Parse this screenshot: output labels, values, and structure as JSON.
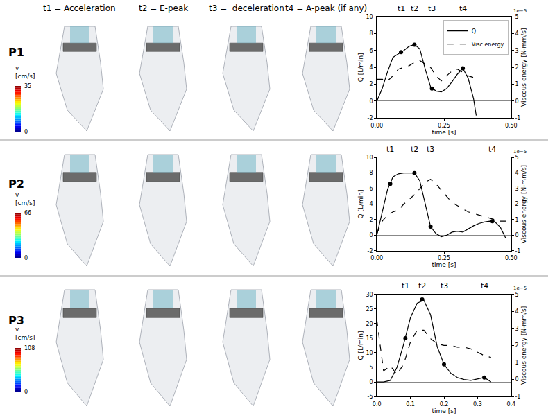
{
  "figure": {
    "column_headers": [
      "t1 = Acceleration",
      "t2 = E-peak",
      "t3 =  deceleration",
      "t4 = A-peak (if any)"
    ],
    "rows": [
      {
        "label": "P1",
        "colorbar": {
          "title_lines": [
            "v",
            "[cm/s]"
          ],
          "range": [
            0,
            35
          ],
          "ticks": [
            0,
            35
          ]
        }
      },
      {
        "label": "P2",
        "colorbar": {
          "title_lines": [
            "v",
            "[cm/s]"
          ],
          "range": [
            0,
            66
          ],
          "ticks": [
            0,
            66
          ]
        }
      },
      {
        "label": "P3",
        "colorbar": {
          "title_lines": [
            "v",
            "[cm/s]"
          ],
          "range": [
            0,
            108
          ],
          "ticks": [
            0,
            108
          ]
        }
      }
    ]
  },
  "chart_data": [
    {
      "type": "line",
      "x_label": "time [s]",
      "y_label": "Q [L/min]",
      "y2_label": "Viscous energy [N-mm/s]",
      "y2_offset_text": "1e−5",
      "grid": false,
      "legend": "upper right",
      "x": [
        0,
        0.02,
        0.04,
        0.06,
        0.08,
        0.1,
        0.12,
        0.14,
        0.16,
        0.18,
        0.2,
        0.22,
        0.24,
        0.26,
        0.28,
        0.3,
        0.32,
        0.34,
        0.36,
        0.37
      ],
      "series": [
        {
          "name": "Q",
          "color": "#000000",
          "line_style": "solid",
          "values": [
            0,
            1.5,
            3.5,
            5.2,
            5.6,
            6.0,
            6.5,
            6.7,
            6.2,
            3.8,
            1.7,
            1.2,
            1.1,
            1.5,
            2.3,
            3.2,
            3.9,
            2.7,
            0.3,
            -1.7
          ]
        },
        {
          "name": "Visc energy",
          "color": "#000000",
          "line_style": "dashed",
          "axis": "y2",
          "values": [
            1.3,
            1.3,
            1.2,
            1.5,
            1.9,
            2.0,
            2.1,
            2.3,
            2.4,
            2.2,
            2.0,
            1.5,
            1.2,
            1.5,
            1.8,
            1.9,
            1.7,
            1.5,
            1.4,
            1.4
          ]
        }
      ],
      "markers": {
        "labels": [
          "t1",
          "t2",
          "t3",
          "t4"
        ],
        "x": [
          0.09,
          0.14,
          0.205,
          0.32
        ],
        "values": [
          5.8,
          6.7,
          1.5,
          3.9
        ]
      },
      "xlim": [
        0,
        0.5
      ],
      "xticks": [
        {
          "value": 0,
          "label": "0.00"
        },
        {
          "value": 0.25,
          "label": "0.25"
        },
        {
          "value": 0.5,
          "label": "0.50"
        }
      ],
      "ylim": [
        -2,
        10
      ],
      "yticks": [
        -2,
        0,
        2,
        4,
        6,
        8,
        10
      ],
      "y2lim": [
        -1,
        5
      ],
      "y2ticks": [
        -1,
        0,
        1,
        2,
        3,
        4,
        5
      ]
    },
    {
      "type": "line",
      "x_label": "time [s]",
      "y_label": "Q [L/min]",
      "y2_label": "Viscous energy [N-mm/s]",
      "y2_offset_text": "1e−5",
      "grid": false,
      "x": [
        0,
        0.02,
        0.04,
        0.06,
        0.08,
        0.1,
        0.12,
        0.14,
        0.16,
        0.18,
        0.2,
        0.22,
        0.24,
        0.26,
        0.28,
        0.3,
        0.32,
        0.34,
        0.36,
        0.38,
        0.4,
        0.42,
        0.44,
        0.46,
        0.48
      ],
      "series": [
        {
          "name": "Q",
          "color": "#000000",
          "line_style": "solid",
          "values": [
            0,
            3.0,
            5.9,
            7.5,
            7.9,
            8.0,
            8.0,
            8.0,
            7.0,
            4.0,
            1.1,
            0.2,
            -0.2,
            0,
            0.4,
            0.5,
            0.4,
            0.8,
            1.2,
            1.5,
            1.7,
            1.8,
            1.7,
            1.0,
            -0.4
          ]
        },
        {
          "name": "Visc energy",
          "color": "#000000",
          "line_style": "dashed",
          "axis": "y2",
          "values": [
            0.1,
            0.9,
            1.3,
            1.5,
            1.6,
            2.0,
            2.3,
            2.6,
            3.0,
            3.4,
            3.6,
            3.3,
            2.9,
            2.5,
            2.1,
            1.9,
            1.7,
            1.5,
            1.4,
            1.3,
            1.2,
            1.1,
            1.0,
            0.9,
            0.9
          ]
        }
      ],
      "markers": {
        "labels": [
          "t1",
          "t2",
          "t3",
          "t4"
        ],
        "x": [
          0.05,
          0.14,
          0.2,
          0.43
        ],
        "values": [
          6.6,
          8.0,
          1.1,
          1.8
        ]
      },
      "xlim": [
        0,
        0.5
      ],
      "xticks": [
        {
          "value": 0,
          "label": "0.00"
        },
        {
          "value": 0.25,
          "label": "0.25"
        },
        {
          "value": 0.5,
          "label": "0.50"
        }
      ],
      "ylim": [
        -2,
        10
      ],
      "yticks": [
        -2,
        0,
        2,
        4,
        6,
        8,
        10
      ],
      "y2lim": [
        -1,
        5
      ],
      "y2ticks": [
        -1,
        0,
        1,
        2,
        3,
        4,
        5
      ]
    },
    {
      "type": "line",
      "x_label": "time [s]",
      "y_label": "Q [L/min]",
      "y2_label": "Viscous energy [N-mm/s]",
      "y2_offset_text": "1e−5",
      "grid": false,
      "x": [
        0,
        0.02,
        0.04,
        0.06,
        0.08,
        0.1,
        0.12,
        0.14,
        0.16,
        0.18,
        0.2,
        0.22,
        0.24,
        0.26,
        0.28,
        0.3,
        0.32,
        0.34
      ],
      "series": [
        {
          "name": "Q",
          "color": "#000000",
          "line_style": "solid",
          "values": [
            0,
            0,
            0.5,
            5,
            13,
            22,
            27,
            28,
            23,
            12,
            6,
            3,
            1.5,
            0.8,
            0.5,
            1.0,
            1.5,
            0
          ]
        },
        {
          "name": "Visc energy",
          "color": "#000000",
          "line_style": "dashed",
          "axis": "y2",
          "values": [
            3.5,
            0.5,
            0.8,
            0.3,
            0.9,
            2.2,
            2.9,
            2.9,
            2.4,
            2.1,
            2.0,
            2.0,
            1.9,
            1.9,
            1.8,
            1.6,
            1.4,
            1.3
          ]
        }
      ],
      "markers": {
        "labels": [
          "t1",
          "t2",
          "t3",
          "t4"
        ],
        "x": [
          0.085,
          0.135,
          0.2,
          0.32
        ],
        "values": [
          15,
          28.3,
          6,
          1.5
        ]
      },
      "xlim": [
        0,
        0.4
      ],
      "xticks": [
        {
          "value": 0,
          "label": "0.0"
        },
        {
          "value": 0.1,
          "label": "0.1"
        },
        {
          "value": 0.2,
          "label": "0.2"
        },
        {
          "value": 0.3,
          "label": "0.3"
        },
        {
          "value": 0.4,
          "label": "0.4"
        }
      ],
      "ylim": [
        -5,
        30
      ],
      "yticks": [
        -5,
        0,
        5,
        10,
        15,
        20,
        25,
        30
      ],
      "y2lim": [
        -1,
        5
      ],
      "y2ticks": [
        -1,
        0,
        1,
        2,
        3,
        4,
        5
      ]
    }
  ]
}
